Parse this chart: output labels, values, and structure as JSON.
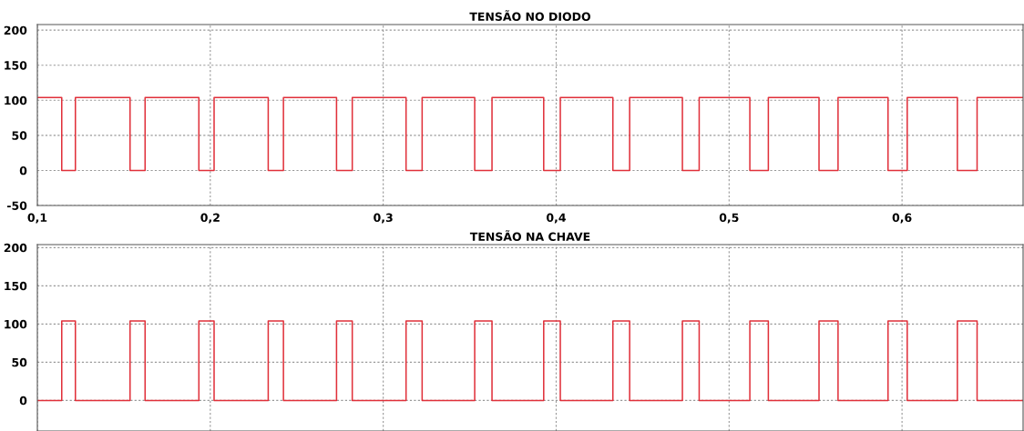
{
  "chart_data": [
    {
      "type": "step",
      "title": "TENSÃO NO DIODO",
      "x": [
        0.1,
        0.1141,
        0.122,
        0.1536,
        0.1623,
        0.1934,
        0.2022,
        0.2335,
        0.2423,
        0.273,
        0.2821,
        0.3132,
        0.3225,
        0.3529,
        0.3629,
        0.3928,
        0.4024,
        0.4328,
        0.4425,
        0.473,
        0.4827,
        0.512,
        0.5227,
        0.552,
        0.563,
        0.5919,
        0.603,
        0.632,
        0.6434,
        0.67
      ],
      "series": [
        {
          "color": "#e0303a",
          "values": [
            104,
            0,
            104,
            0,
            104,
            0,
            104,
            0,
            104,
            0,
            104,
            0,
            104,
            0,
            104,
            0,
            104,
            0,
            104,
            0,
            104,
            0,
            104,
            0,
            104,
            0,
            104,
            0,
            104,
            104
          ]
        }
      ],
      "xlim": [
        0.1,
        0.67
      ],
      "xticks": [
        {
          "value": 0.1,
          "label": "0,1"
        },
        {
          "value": 0.2,
          "label": "0,2"
        },
        {
          "value": 0.3,
          "label": "0,3"
        },
        {
          "value": 0.4,
          "label": "0,4"
        },
        {
          "value": 0.5,
          "label": "0,5"
        },
        {
          "value": 0.6,
          "label": "0,6"
        }
      ],
      "ylim": [
        -50,
        208
      ],
      "yticks": [
        -50,
        0,
        50,
        100,
        150,
        200
      ],
      "grid": true
    },
    {
      "type": "step",
      "title": "TENSÃO NA CHAVE",
      "x": [
        0.1,
        0.1141,
        0.122,
        0.1536,
        0.1623,
        0.1934,
        0.2022,
        0.2335,
        0.2423,
        0.273,
        0.2821,
        0.3132,
        0.3225,
        0.3529,
        0.3629,
        0.3928,
        0.4024,
        0.4328,
        0.4425,
        0.473,
        0.4827,
        0.512,
        0.5227,
        0.552,
        0.563,
        0.5919,
        0.603,
        0.632,
        0.6434,
        0.67
      ],
      "series": [
        {
          "color": "#e0303a",
          "values": [
            0,
            104,
            0,
            104,
            0,
            104,
            0,
            104,
            0,
            104,
            0,
            104,
            0,
            104,
            0,
            104,
            0,
            104,
            0,
            104,
            0,
            104,
            0,
            104,
            0,
            104,
            0,
            104,
            0,
            0
          ]
        }
      ],
      "xlim": [
        0.1,
        0.67
      ],
      "xticks": [
        {
          "value": 0.1,
          "label": null
        },
        {
          "value": 0.2,
          "label": null
        },
        {
          "value": 0.3,
          "label": null
        },
        {
          "value": 0.4,
          "label": null
        },
        {
          "value": 0.5,
          "label": null
        },
        {
          "value": 0.6,
          "label": null
        }
      ],
      "ylim": [
        -40,
        204
      ],
      "yticks": [
        0,
        50,
        100,
        150,
        200
      ],
      "grid": true,
      "tick_labels": "y"
    }
  ]
}
